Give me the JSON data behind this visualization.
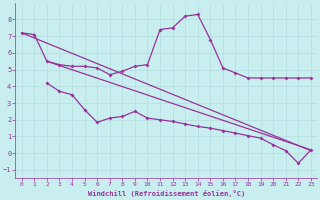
{
  "background_color": "#c8eef0",
  "line_color": "#993399",
  "grid_color": "#b8e0e4",
  "xlabel": "Windchill (Refroidissement éolien,°C)",
  "xlabel_color": "#993399",
  "tick_color": "#993399",
  "ylim": [
    -1.5,
    9.0
  ],
  "xlim": [
    -0.5,
    23.5
  ],
  "yticks": [
    -1,
    0,
    1,
    2,
    3,
    4,
    5,
    6,
    7,
    8
  ],
  "xticks": [
    0,
    1,
    2,
    3,
    4,
    5,
    6,
    7,
    8,
    9,
    10,
    11,
    12,
    13,
    14,
    15,
    16,
    17,
    18,
    19,
    20,
    21,
    22,
    23
  ],
  "line1_x": [
    0,
    1,
    2,
    3,
    4,
    5,
    6,
    7,
    8,
    9,
    10,
    11,
    12,
    13,
    14,
    15,
    16,
    17,
    18,
    19,
    20,
    21,
    22,
    23
  ],
  "line1_y": [
    7.2,
    7.1,
    5.5,
    5.3,
    5.2,
    5.2,
    5.1,
    4.7,
    4.9,
    5.2,
    5.3,
    7.4,
    7.5,
    8.2,
    8.3,
    6.8,
    5.1,
    4.8,
    4.5,
    4.5,
    4.5,
    4.5,
    4.5,
    4.5
  ],
  "line2_x": [
    2,
    3,
    4,
    5,
    6,
    7,
    8,
    9,
    10,
    11,
    12,
    13,
    14,
    15,
    16,
    17,
    18,
    19,
    20,
    21,
    22,
    23
  ],
  "line2_y": [
    4.2,
    3.7,
    3.5,
    2.6,
    1.85,
    2.1,
    2.2,
    2.5,
    2.1,
    2.0,
    1.9,
    1.75,
    1.6,
    1.5,
    1.35,
    1.2,
    1.05,
    0.9,
    0.5,
    0.15,
    -0.6,
    0.2
  ],
  "line3_x": [
    0,
    23
  ],
  "line3_y": [
    7.2,
    0.15
  ],
  "line4_x": [
    2,
    23
  ],
  "line4_y": [
    5.5,
    0.2
  ],
  "marker": "D",
  "markersize": 2.0,
  "linewidth": 0.9
}
